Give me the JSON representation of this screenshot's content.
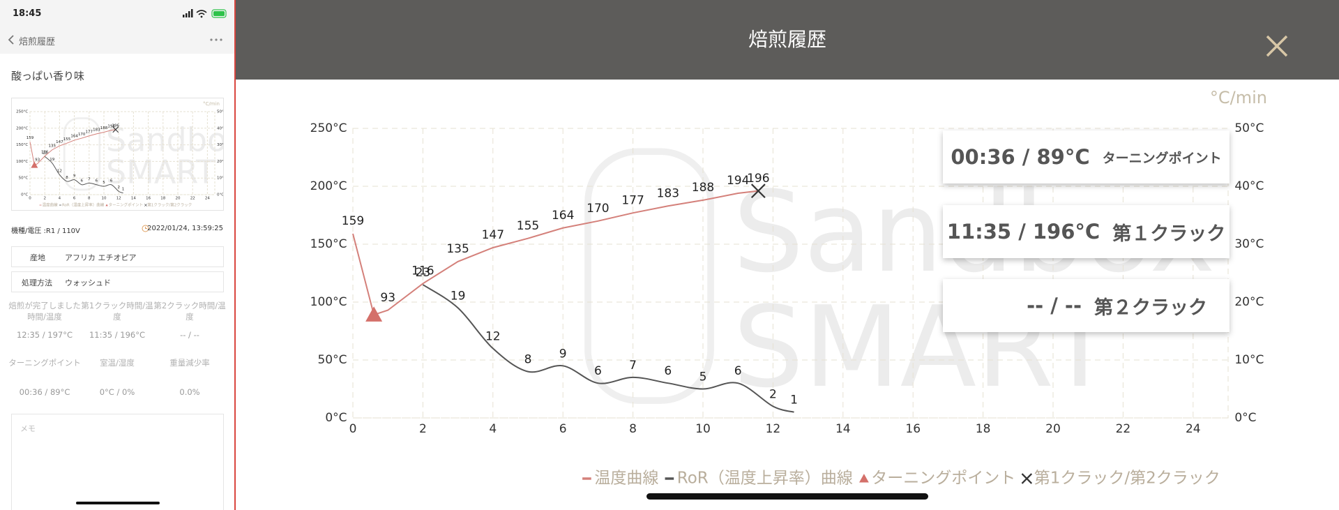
{
  "status_bar": {
    "time": "18:45"
  },
  "side_panel": {
    "nav_title": "焙煎履歴",
    "profile_name": "酸っぱい香り味",
    "device": "機種/電圧 :R1 / 110V",
    "date": "2022/01/24, 13:59:25",
    "fields": [
      {
        "label": "産地",
        "value": "アフリカ エチオピア"
      },
      {
        "label": "処理方法",
        "value": "ウォッシュド"
      }
    ],
    "stats": [
      {
        "label": "焙煎が完了しました時間/温度",
        "value": "12:35 / 197°C"
      },
      {
        "label": "第1クラック時間/温度",
        "value": "11:35 / 196°C"
      },
      {
        "label": "第2クラック時間/温度",
        "value": "-- / --"
      },
      {
        "label": "ターニングポイント",
        "value": "00:36 / 89°C"
      },
      {
        "label": "室温/湿度",
        "value": "0°C / 0%"
      },
      {
        "label": "重量減少率",
        "value": "0.0%"
      }
    ],
    "memo_placeholder": "メモ"
  },
  "modal": {
    "title": "焙煎履歴"
  },
  "info_cards": [
    {
      "value": "00:36 / 89°C",
      "label": "ターニングポイント"
    },
    {
      "value": "11:35 / 196°C",
      "label": "第１クラック"
    },
    {
      "value": "-- / --",
      "label": "第２クラック"
    }
  ],
  "chart_data": {
    "type": "line",
    "watermark": [
      "Sandbox",
      "SMART"
    ],
    "y2_unit": "°C/min",
    "xlim": [
      0,
      25
    ],
    "xticks": [
      0,
      2,
      4,
      6,
      8,
      10,
      12,
      14,
      16,
      18,
      20,
      22,
      24
    ],
    "ylim": [
      0,
      250
    ],
    "yticks": [
      {
        "value": 0,
        "label": "0°C"
      },
      {
        "value": 50,
        "label": "50°C"
      },
      {
        "value": 100,
        "label": "100°C"
      },
      {
        "value": 150,
        "label": "150°C"
      },
      {
        "value": 200,
        "label": "200°C"
      },
      {
        "value": 250,
        "label": "250°C"
      }
    ],
    "y2lim": [
      0,
      50
    ],
    "y2ticks": [
      {
        "value": 0,
        "label": "0°C"
      },
      {
        "value": 10,
        "label": "10°C"
      },
      {
        "value": 20,
        "label": "20°C"
      },
      {
        "value": 30,
        "label": "30°C"
      },
      {
        "value": 40,
        "label": "40°C"
      },
      {
        "value": 50,
        "label": "50°C"
      }
    ],
    "grid": true,
    "legend": "bottom",
    "series": [
      {
        "name": "温度曲線",
        "color": "#d4807a",
        "x": [
          0,
          0.6,
          1,
          2,
          3,
          4,
          5,
          6,
          7,
          8,
          9,
          10,
          11,
          11.58
        ],
        "values": [
          159,
          89,
          93,
          116,
          135,
          147,
          155,
          164,
          170,
          177,
          183,
          188,
          194,
          196
        ]
      },
      {
        "name": "RoR（温度上昇率）曲線",
        "color": "#555555",
        "axis": "y2",
        "x": [
          2,
          3,
          4,
          5,
          6,
          7,
          8,
          9,
          10,
          11,
          12,
          12.6
        ],
        "values": [
          23,
          19,
          12,
          8,
          9,
          6,
          7,
          6,
          5,
          6,
          2,
          1
        ]
      }
    ],
    "markers": [
      {
        "name": "ターニングポイント",
        "shape": "triangle",
        "color": "#d4706a",
        "x": 0.6,
        "y": 89
      },
      {
        "name": "第1クラック/第2クラック",
        "shape": "cross",
        "color": "#333333",
        "x": 11.58,
        "y": 196
      }
    ]
  }
}
